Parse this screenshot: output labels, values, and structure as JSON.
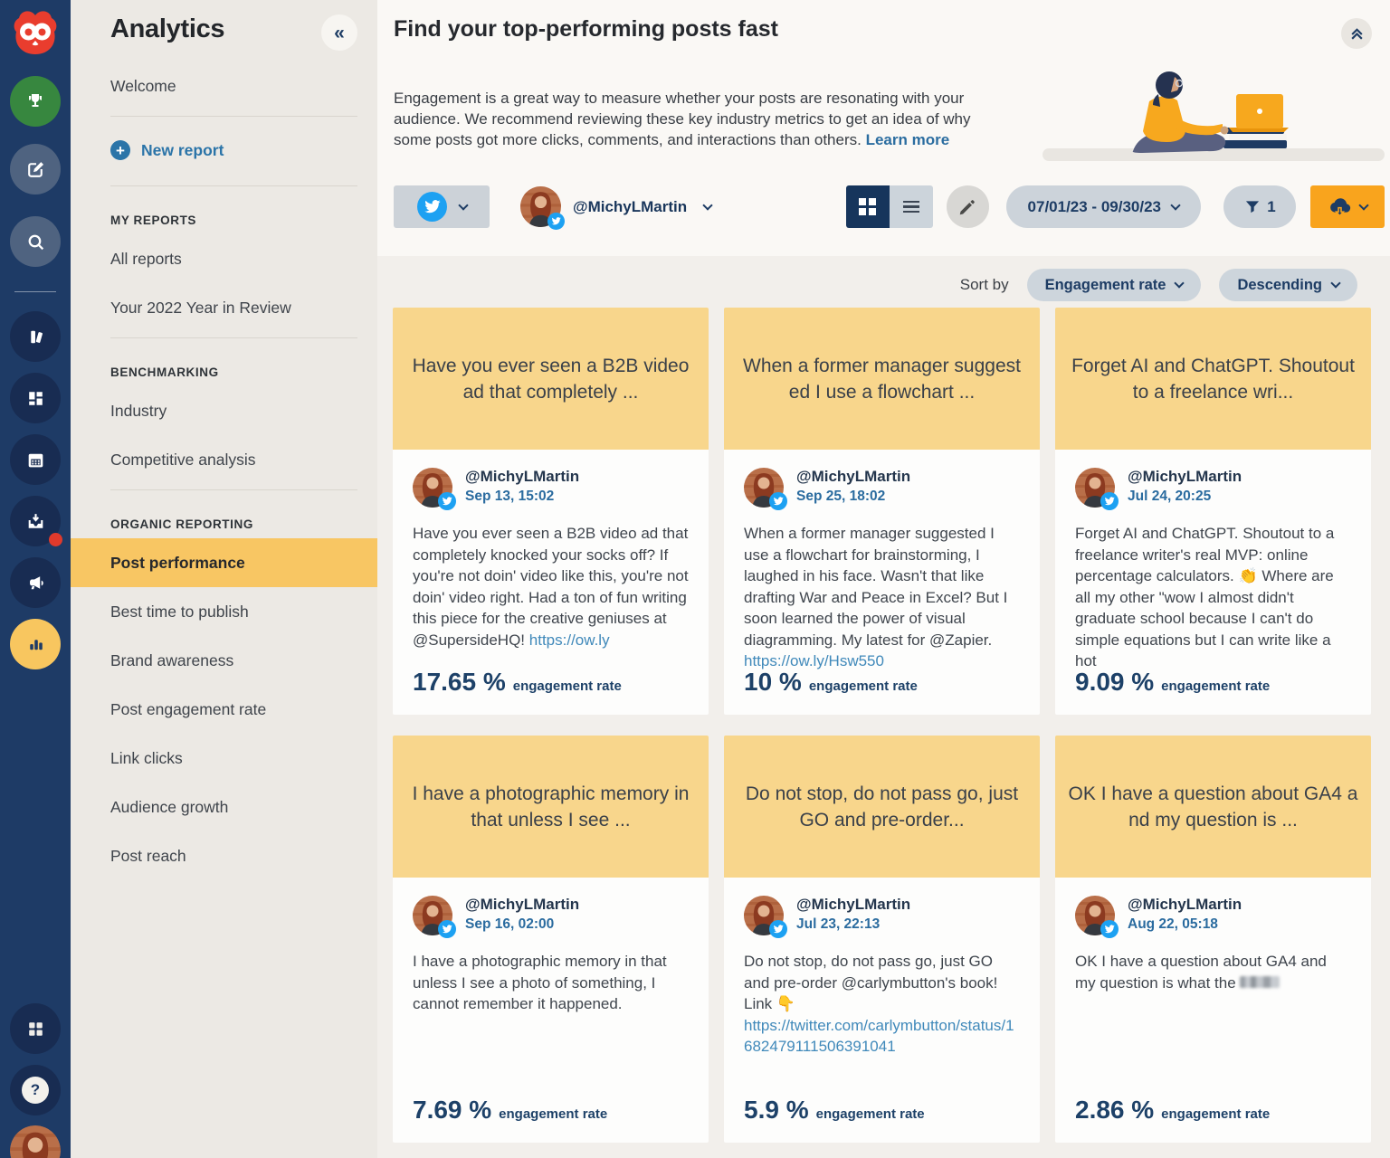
{
  "colors": {
    "rail_navy": "#1e3b66",
    "accent_yellow": "#f8c663",
    "card_header_yellow": "#f8d68c",
    "export_orange": "#f9a41d",
    "twitter_blue": "#1da1f2",
    "link_blue": "#4089ba",
    "navy_text": "#1d3c64"
  },
  "rail": {
    "logo": "hootsuite-owl",
    "help_glyph": "?",
    "icons": [
      {
        "name": "trophy",
        "style": "green"
      },
      {
        "name": "compose",
        "style": "slate"
      },
      {
        "name": "search",
        "style": "slate"
      },
      {
        "name": "streams",
        "style": "dark"
      },
      {
        "name": "boards",
        "style": "dark"
      },
      {
        "name": "calendar",
        "style": "dark"
      },
      {
        "name": "inbox",
        "style": "dark",
        "notification": true
      },
      {
        "name": "megaphone",
        "style": "dark"
      },
      {
        "name": "analytics",
        "style": "yellow",
        "active": true
      },
      {
        "name": "apps",
        "style": "dark"
      },
      {
        "name": "help",
        "style": "dark"
      },
      {
        "name": "profile-avatar",
        "style": "photo"
      }
    ]
  },
  "sidebar": {
    "title": "Analytics",
    "collapse_glyph": "«",
    "welcome": "Welcome",
    "new_report_plus": "+",
    "new_report": "New report",
    "sections": [
      {
        "heading": "MY REPORTS",
        "items": [
          {
            "label": "All reports"
          },
          {
            "label": "Your 2022 Year in Review"
          }
        ]
      },
      {
        "heading": "BENCHMARKING",
        "items": [
          {
            "label": "Industry"
          },
          {
            "label": "Competitive analysis"
          }
        ]
      },
      {
        "heading": "ORGANIC REPORTING",
        "items": [
          {
            "label": "Post performance",
            "active": true
          },
          {
            "label": "Best time to publish"
          },
          {
            "label": "Brand awareness"
          },
          {
            "label": "Post engagement rate"
          },
          {
            "label": "Link clicks"
          },
          {
            "label": "Audience growth"
          },
          {
            "label": "Post reach"
          }
        ]
      }
    ]
  },
  "header": {
    "title": "Find your top-performing posts fast",
    "description": "Engagement is a great way to measure whether your posts are resonating with your audience. We recommend reviewing these key industry metrics to get an idea of why some posts got more clicks, comments, and interactions than others.",
    "learn_more": "Learn more"
  },
  "toolbar": {
    "network_selector_icon": "twitter-bird",
    "account": "@MichyLMartin",
    "view_modes": [
      "grid",
      "list"
    ],
    "active_view": "grid",
    "edit_icon": "pencil",
    "date_range": "07/01/23 - 09/30/23",
    "filter_icon": "funnel",
    "filter_count": "1",
    "export_icon": "cloud-download"
  },
  "sort": {
    "label": "Sort by",
    "by": "Engagement rate",
    "order": "Descending"
  },
  "cards": [
    {
      "header_line1": "Have you ever seen a B2B video",
      "header_line2": "ad that completely ...",
      "username": "@MichyLMartin",
      "date": "Sep 13, 15:02",
      "body": [
        {
          "t": "text",
          "v": "Have you ever seen a B2B video ad that completely knocked your socks off? If you're not doin' video like this, you're not doin' video right. Had a ton of fun writing this piece for the creative geniuses at @SupersideHQ! "
        },
        {
          "t": "link",
          "v": "https://ow.ly"
        }
      ],
      "metric_value": "17.65 %",
      "metric_label": "engagement rate"
    },
    {
      "header_line1": "When a former manager suggest",
      "header_line2": "ed I use a flowchart ...",
      "username": "@MichyLMartin",
      "date": "Sep 25, 18:02",
      "body": [
        {
          "t": "text",
          "v": "When a former manager suggested I use a flowchart for brainstorming, I laughed in his face. Wasn't that like drafting War and Peace in Excel? But I soon learned the power of visual diagramming. My latest for @Zapier. "
        },
        {
          "t": "link",
          "v": "https://ow.ly/Hsw550"
        }
      ],
      "metric_value": "10 %",
      "metric_label": "engagement rate"
    },
    {
      "header_line1": "Forget AI and ChatGPT. Shoutout",
      "header_line2": "to a freelance wri...",
      "username": "@MichyLMartin",
      "date": "Jul 24, 20:25",
      "body": [
        {
          "t": "text",
          "v": "Forget AI and ChatGPT. Shoutout to a freelance writer's real MVP: online percentage calculators. 👏 Where are all my other \"wow I almost didn't graduate school because I can't do simple equations but I can write like a hot"
        }
      ],
      "metric_value": "9.09 %",
      "metric_label": "engagement rate"
    },
    {
      "header_line1": "I have a photographic memory in",
      "header_line2": "that unless I see ...",
      "username": "@MichyLMartin",
      "date": "Sep 16, 02:00",
      "body": [
        {
          "t": "text",
          "v": "I have a photographic memory in that unless I see a photo of something, I cannot remember it happened."
        }
      ],
      "metric_value": "7.69 %",
      "metric_label": "engagement rate"
    },
    {
      "header_line1": "Do not stop, do not pass go, just",
      "header_line2": "GO and pre-order...",
      "username": "@MichyLMartin",
      "date": "Jul 23, 22:13",
      "body": [
        {
          "t": "text",
          "v": "Do not stop, do not pass go, just GO and pre-order @carlymbutton's book! Link 👇 "
        },
        {
          "t": "link",
          "v": "https://twitter.com/carlymbutton/status/1682479111506391041"
        }
      ],
      "metric_value": "5.9 %",
      "metric_label": "engagement rate"
    },
    {
      "header_line1": "OK I have a question about GA4 a",
      "header_line2": "nd my question is ...",
      "username": "@MichyLMartin",
      "date": "Aug 22, 05:18",
      "body": [
        {
          "t": "text",
          "v": "OK I have a question about GA4 and my question is what the "
        },
        {
          "t": "censored",
          "v": ""
        }
      ],
      "metric_value": "2.86 %",
      "metric_label": "engagement rate"
    }
  ]
}
